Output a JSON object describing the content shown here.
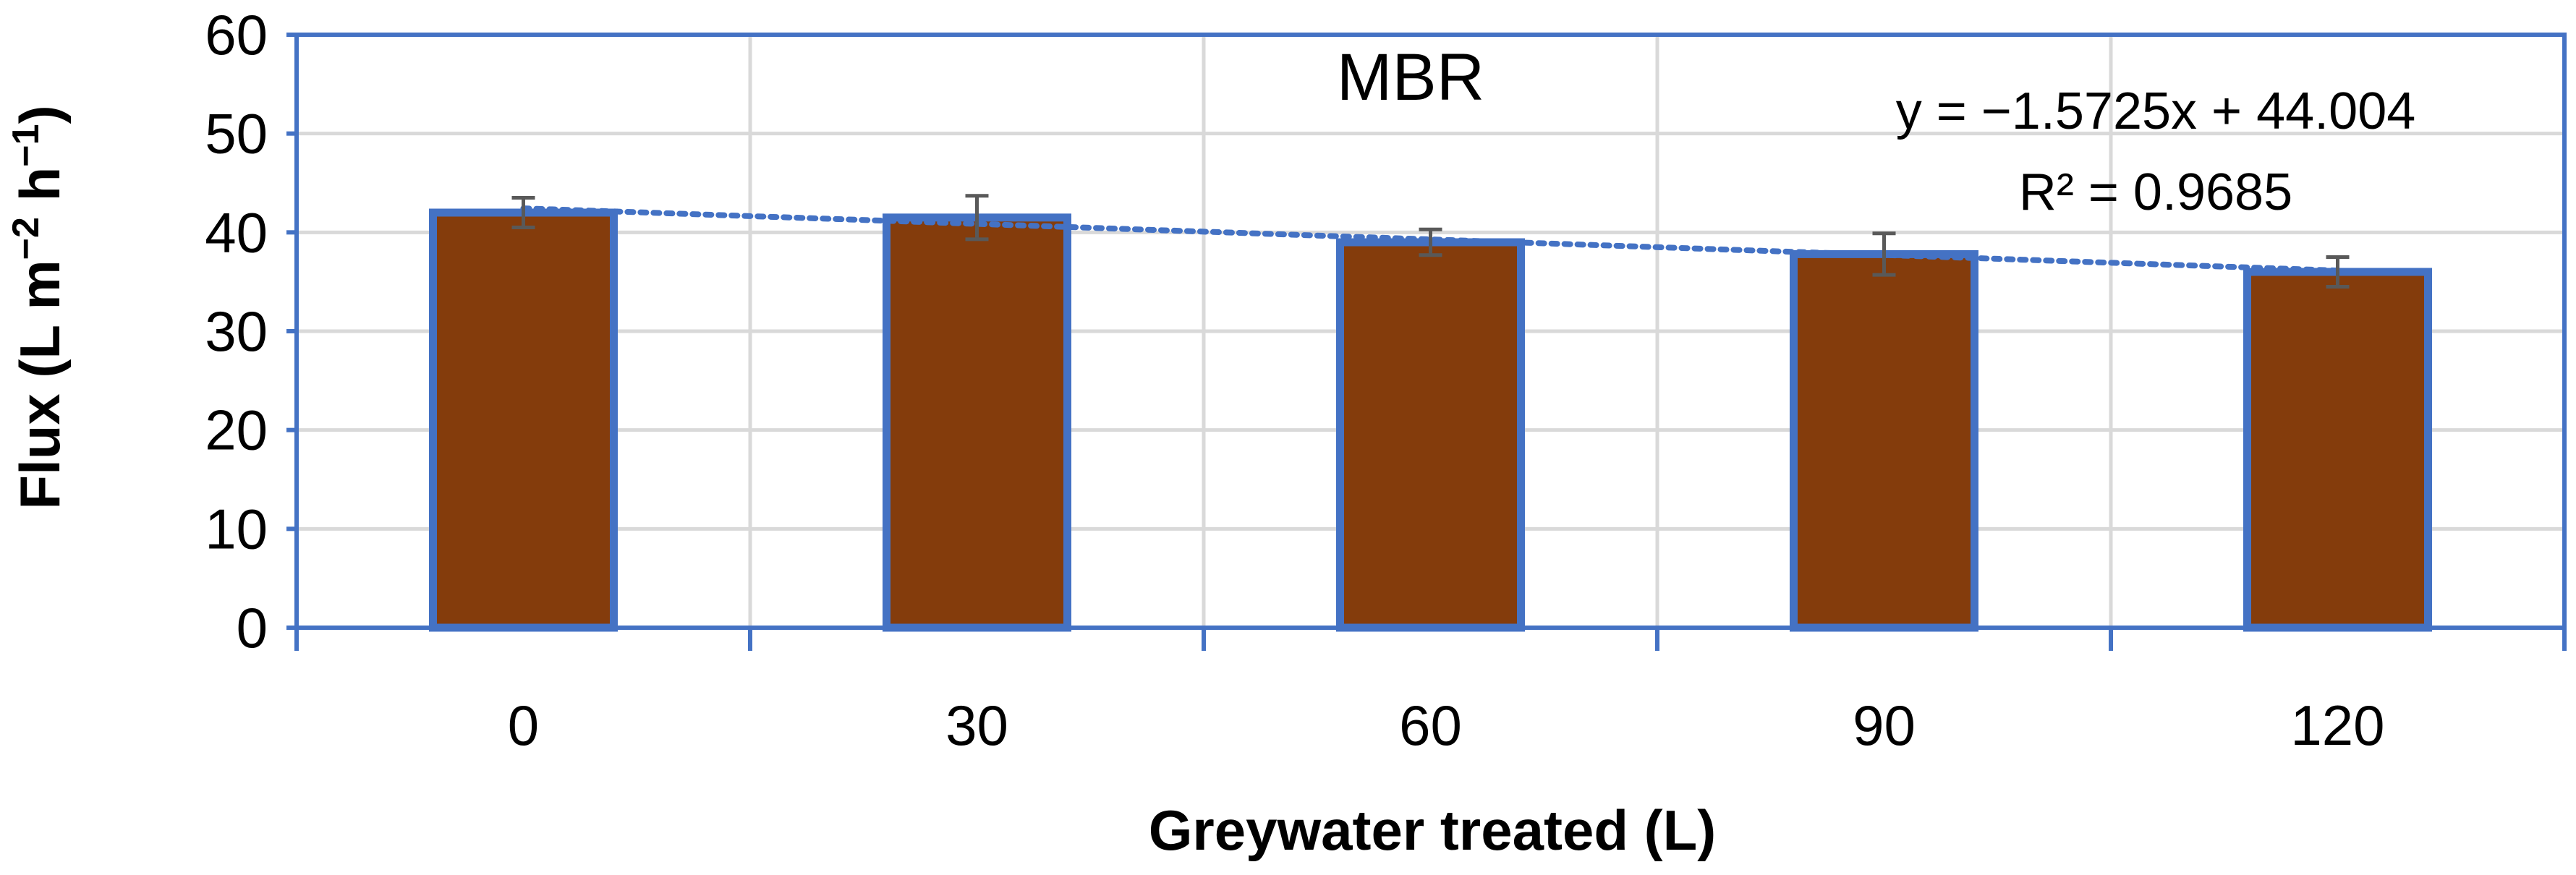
{
  "chart_data": {
    "type": "bar",
    "title": "MBR",
    "categories": [
      "0",
      "30",
      "60",
      "90",
      "120"
    ],
    "x": [
      0,
      30,
      60,
      90,
      120
    ],
    "values": [
      42,
      41.5,
      39,
      37.8,
      36
    ],
    "error": [
      1.5,
      2.2,
      1.3,
      2.1,
      1.5
    ],
    "xlabel": "Greywater treated (L)",
    "ylabel_main": "Flux (L m",
    "ylabel_exp1": "−2",
    "ylabel_mid": " h",
    "ylabel_exp2": "−1",
    "ylabel_end": ")",
    "ylim": [
      0,
      60
    ],
    "yticks": [
      "0",
      "10",
      "20",
      "30",
      "40",
      "50",
      "60"
    ],
    "grid": true,
    "trendline": {
      "type": "linear",
      "slope": -1.5725,
      "intercept": 44.004,
      "equation": "y = −1.5725x + 44.004",
      "r_squared": "R² = 0.9685"
    },
    "colors": {
      "bar_fill": "#843C0C",
      "bar_stroke": "#4472C4",
      "axis": "#4472C4",
      "grid": "#D9D9D9",
      "trend": "#4472C4",
      "error_bar": "#595959"
    }
  }
}
